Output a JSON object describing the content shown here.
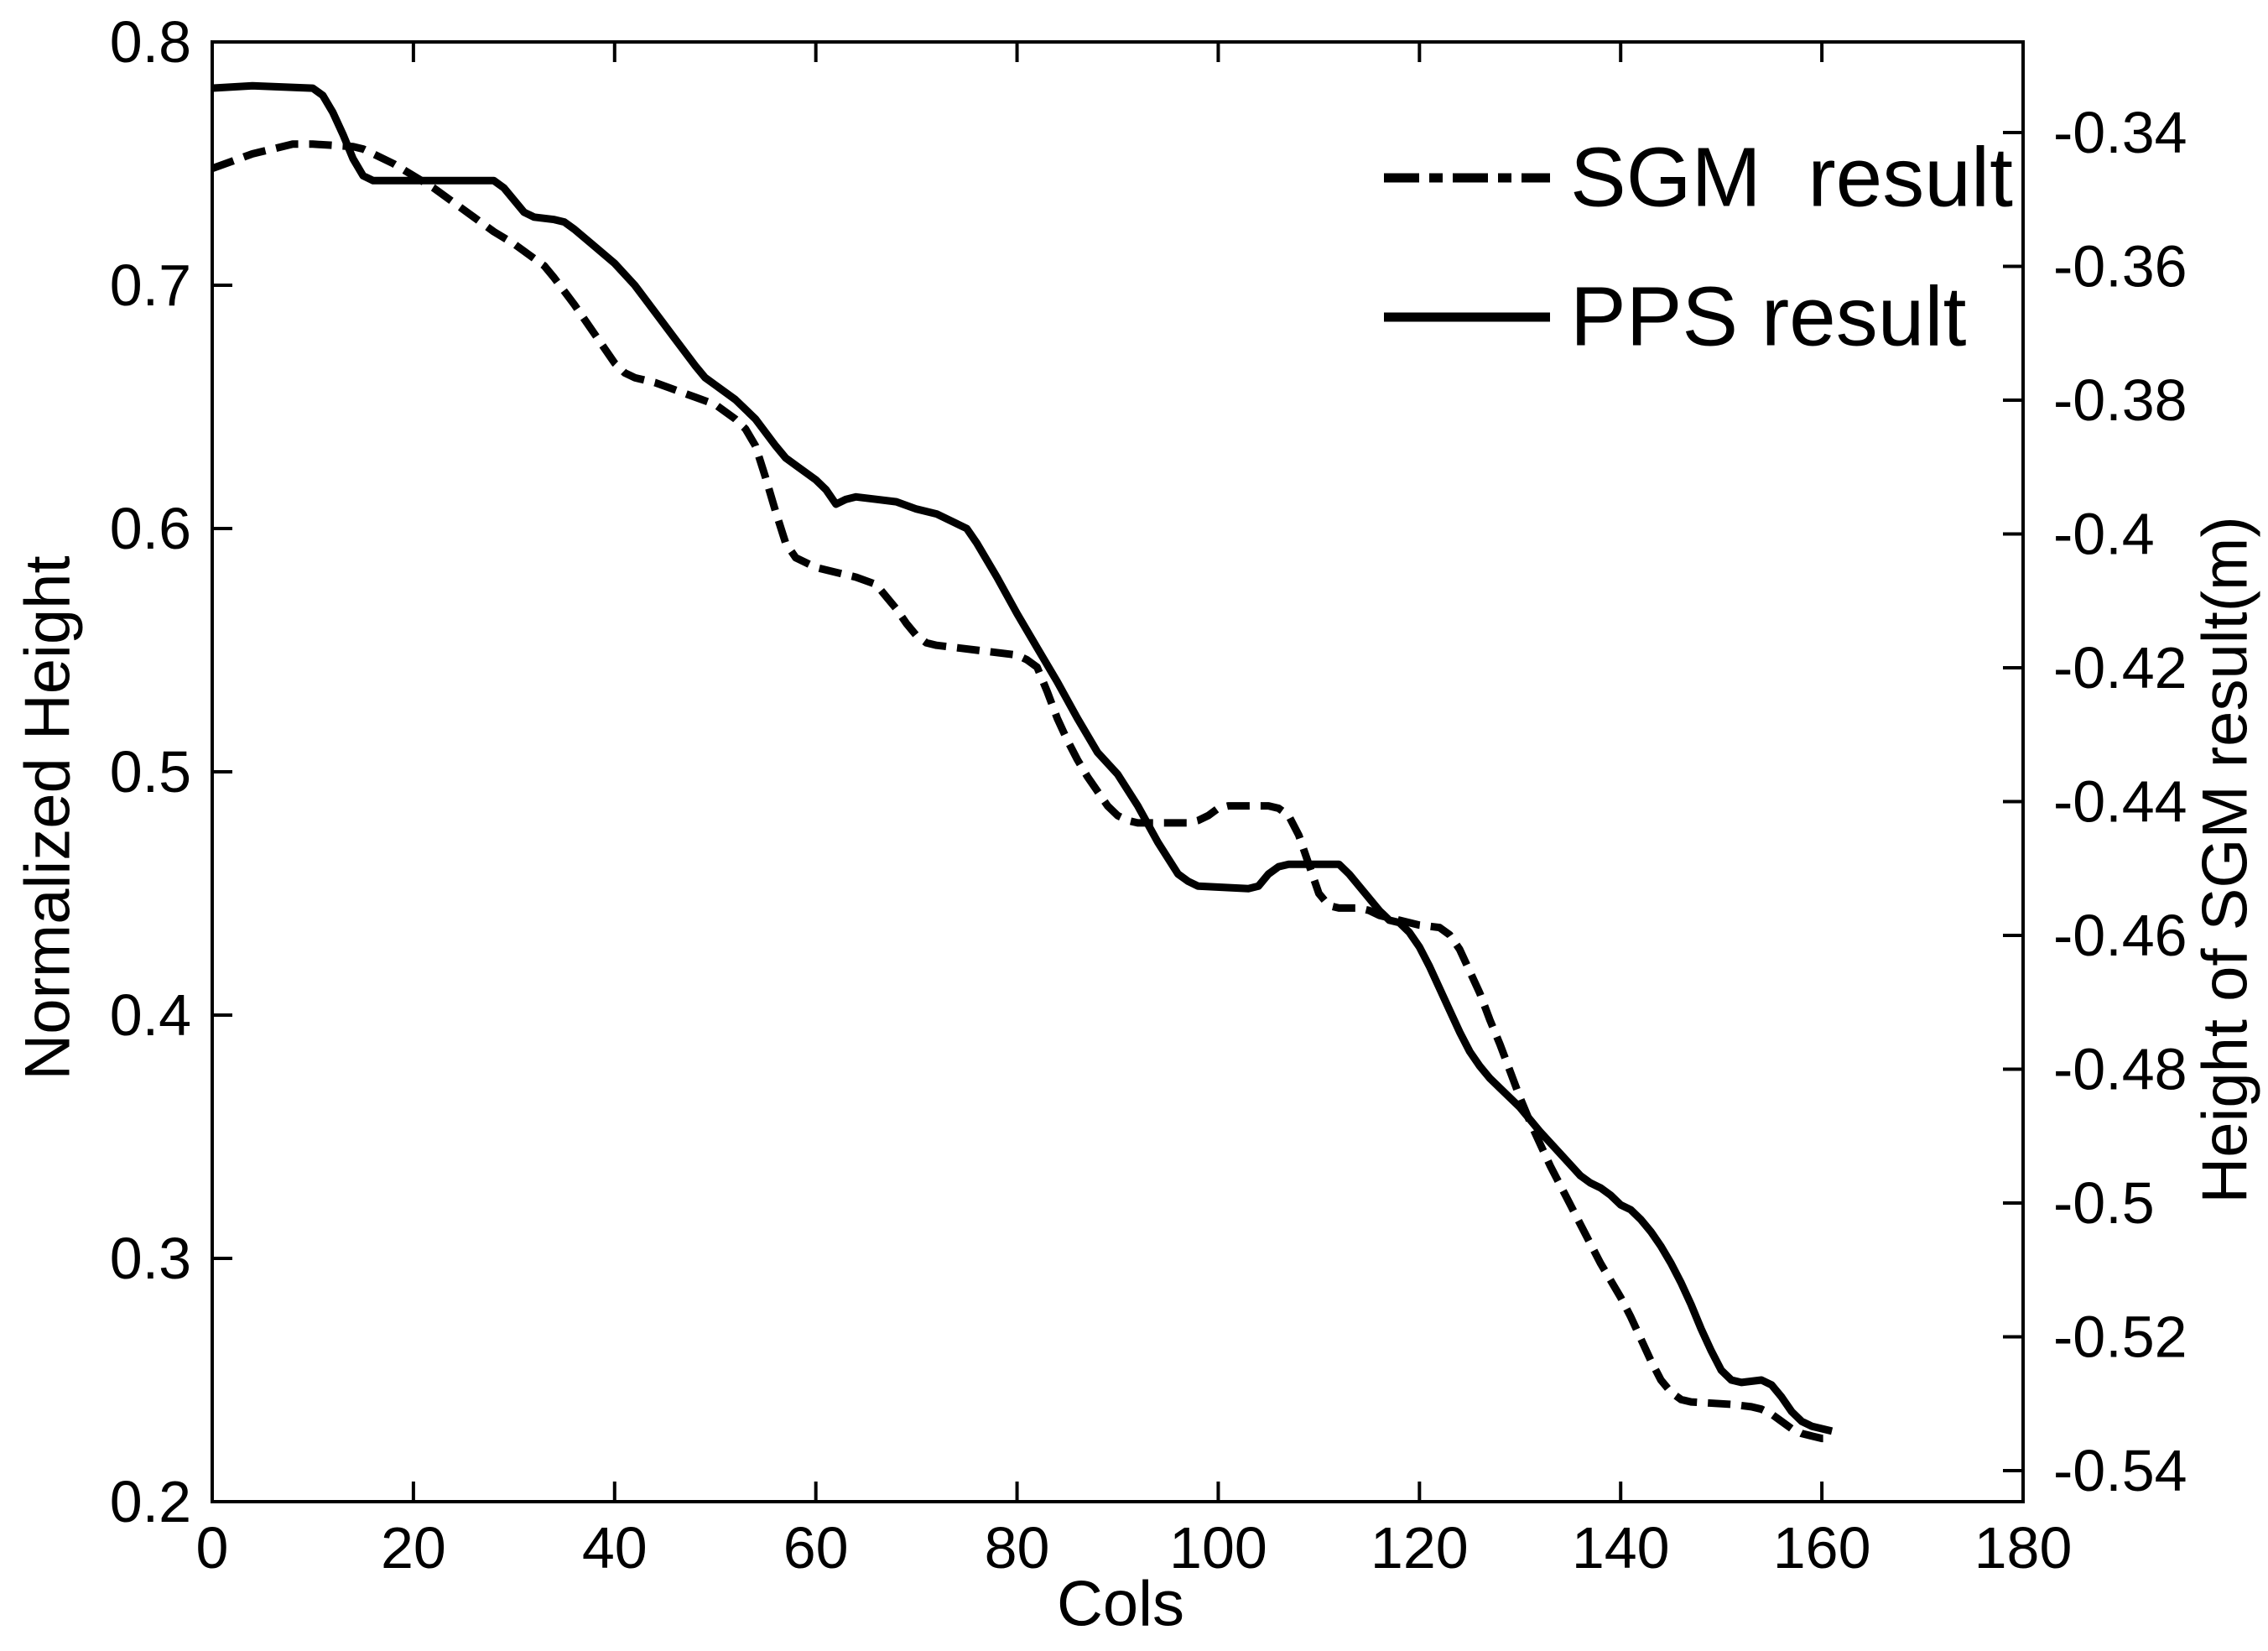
{
  "figure": {
    "background_color": "#ffffff",
    "line_color": "#000000"
  },
  "chart_data": {
    "type": "line",
    "title": "",
    "xlabel": "Cols",
    "ylabel_left": "Normalized Height",
    "ylabel_right": "Height of SGM result(m)",
    "grid": false,
    "x_axis": {
      "min": 0,
      "max": 180,
      "ticks": [
        0,
        20,
        40,
        60,
        80,
        100,
        120,
        140,
        160,
        180
      ],
      "tick_labels": [
        "0",
        "20",
        "40",
        "60",
        "80",
        "100",
        "120",
        "140",
        "160",
        "180"
      ]
    },
    "y_axis_left": {
      "min": 0.2,
      "max": 0.8,
      "ticks": [
        0.8,
        0.7,
        0.6,
        0.5,
        0.4,
        0.3,
        0.2
      ],
      "tick_labels": [
        "0.8",
        "0.7",
        "0.6",
        "0.5",
        "0.4",
        "0.3",
        "0.2"
      ]
    },
    "y_axis_right": {
      "top_value": -0.32646,
      "bottom_value": -0.54464,
      "ticks": [
        -0.34,
        -0.36,
        -0.38,
        -0.4,
        -0.42,
        -0.44,
        -0.46,
        -0.48,
        -0.5,
        -0.52,
        -0.54
      ],
      "tick_labels": [
        "-0.34",
        "-0.36",
        "-0.38",
        "-0.4",
        "-0.42",
        "-0.44",
        "-0.46",
        "-0.48",
        "-0.5",
        "-0.52",
        "-0.54"
      ]
    },
    "legend": {
      "position": "upper-right",
      "entries": [
        {
          "label": "SGM  result",
          "line_style": "dash-dot"
        },
        {
          "label": "PPS result",
          "line_style": "solid"
        }
      ]
    },
    "series": [
      {
        "name": "SGM result",
        "axis": "left",
        "style": "dashed",
        "color": "#000000",
        "points": [
          [
            0,
            0.748
          ],
          [
            2,
            0.751
          ],
          [
            4,
            0.754
          ],
          [
            6,
            0.756
          ],
          [
            8,
            0.758
          ],
          [
            10,
            0.758
          ],
          [
            14,
            0.757
          ],
          [
            15,
            0.756
          ],
          [
            16,
            0.754
          ],
          [
            18,
            0.75
          ],
          [
            20,
            0.745
          ],
          [
            22,
            0.74
          ],
          [
            24,
            0.734
          ],
          [
            26,
            0.728
          ],
          [
            28,
            0.722
          ],
          [
            30,
            0.717
          ],
          [
            32,
            0.711
          ],
          [
            33,
            0.708
          ],
          [
            34,
            0.703
          ],
          [
            36,
            0.692
          ],
          [
            38,
            0.68
          ],
          [
            40,
            0.668
          ],
          [
            41,
            0.664
          ],
          [
            42,
            0.662
          ],
          [
            44,
            0.66
          ],
          [
            46,
            0.657
          ],
          [
            48,
            0.654
          ],
          [
            50,
            0.651
          ],
          [
            51,
            0.648
          ],
          [
            52,
            0.645
          ],
          [
            53,
            0.641
          ],
          [
            54,
            0.634
          ],
          [
            55,
            0.621
          ],
          [
            56,
            0.607
          ],
          [
            57,
            0.594
          ],
          [
            58,
            0.588
          ],
          [
            60,
            0.584
          ],
          [
            62,
            0.582
          ],
          [
            64,
            0.58
          ],
          [
            66,
            0.577
          ],
          [
            67,
            0.572
          ],
          [
            68,
            0.567
          ],
          [
            69,
            0.561
          ],
          [
            70,
            0.556
          ],
          [
            71,
            0.553
          ],
          [
            72,
            0.552
          ],
          [
            76,
            0.55
          ],
          [
            80,
            0.548
          ],
          [
            81,
            0.546
          ],
          [
            82,
            0.543
          ],
          [
            83,
            0.533
          ],
          [
            84,
            0.522
          ],
          [
            85,
            0.513
          ],
          [
            86,
            0.505
          ],
          [
            87,
            0.498
          ],
          [
            88,
            0.492
          ],
          [
            89,
            0.486
          ],
          [
            90,
            0.482
          ],
          [
            91,
            0.48
          ],
          [
            92,
            0.479
          ],
          [
            97,
            0.479
          ],
          [
            98,
            0.48
          ],
          [
            99,
            0.482
          ],
          [
            100,
            0.485
          ],
          [
            101,
            0.486
          ],
          [
            105,
            0.486
          ],
          [
            106,
            0.485
          ],
          [
            107,
            0.482
          ],
          [
            108,
            0.474
          ],
          [
            109,
            0.462
          ],
          [
            110,
            0.45
          ],
          [
            111,
            0.445
          ],
          [
            112,
            0.444
          ],
          [
            114,
            0.444
          ],
          [
            115,
            0.443
          ],
          [
            116,
            0.441
          ],
          [
            118,
            0.439
          ],
          [
            120,
            0.437
          ],
          [
            122,
            0.436
          ],
          [
            123,
            0.433
          ],
          [
            124,
            0.427
          ],
          [
            125,
            0.418
          ],
          [
            126,
            0.409
          ],
          [
            127,
            0.398
          ],
          [
            128,
            0.388
          ],
          [
            129,
            0.377
          ],
          [
            130,
            0.366
          ],
          [
            131,
            0.356
          ],
          [
            132,
            0.347
          ],
          [
            133,
            0.338
          ],
          [
            134,
            0.33
          ],
          [
            135,
            0.322
          ],
          [
            136,
            0.314
          ],
          [
            137,
            0.306
          ],
          [
            138,
            0.298
          ],
          [
            139,
            0.291
          ],
          [
            140,
            0.284
          ],
          [
            141,
            0.276
          ],
          [
            142,
            0.267
          ],
          [
            143,
            0.258
          ],
          [
            144,
            0.25
          ],
          [
            145,
            0.245
          ],
          [
            146,
            0.242
          ],
          [
            147,
            0.241
          ],
          [
            151,
            0.24
          ],
          [
            153,
            0.239
          ],
          [
            154,
            0.238
          ],
          [
            155,
            0.236
          ],
          [
            156,
            0.233
          ],
          [
            157,
            0.23
          ],
          [
            158,
            0.228
          ],
          [
            159,
            0.227
          ],
          [
            160,
            0.226
          ],
          [
            161,
            0.226
          ]
        ]
      },
      {
        "name": "PPS result",
        "axis": "left",
        "style": "solid",
        "color": "#000000",
        "points": [
          [
            0,
            0.781
          ],
          [
            4,
            0.782
          ],
          [
            10,
            0.781
          ],
          [
            11,
            0.778
          ],
          [
            12,
            0.771
          ],
          [
            13,
            0.762
          ],
          [
            14,
            0.752
          ],
          [
            15,
            0.745
          ],
          [
            16,
            0.743
          ],
          [
            28,
            0.743
          ],
          [
            29,
            0.74
          ],
          [
            30,
            0.735
          ],
          [
            31,
            0.73
          ],
          [
            32,
            0.728
          ],
          [
            34,
            0.727
          ],
          [
            35,
            0.726
          ],
          [
            36,
            0.723
          ],
          [
            38,
            0.716
          ],
          [
            40,
            0.709
          ],
          [
            42,
            0.7
          ],
          [
            44,
            0.689
          ],
          [
            46,
            0.678
          ],
          [
            48,
            0.667
          ],
          [
            49,
            0.662
          ],
          [
            50,
            0.659
          ],
          [
            52,
            0.653
          ],
          [
            54,
            0.645
          ],
          [
            56,
            0.634
          ],
          [
            57,
            0.629
          ],
          [
            58,
            0.626
          ],
          [
            60,
            0.62
          ],
          [
            61,
            0.616
          ],
          [
            62,
            0.61
          ],
          [
            63,
            0.612
          ],
          [
            64,
            0.613
          ],
          [
            66,
            0.612
          ],
          [
            68,
            0.611
          ],
          [
            70,
            0.608
          ],
          [
            72,
            0.606
          ],
          [
            74,
            0.602
          ],
          [
            75,
            0.6
          ],
          [
            76,
            0.594
          ],
          [
            78,
            0.58
          ],
          [
            80,
            0.565
          ],
          [
            82,
            0.551
          ],
          [
            84,
            0.537
          ],
          [
            86,
            0.522
          ],
          [
            88,
            0.508
          ],
          [
            90,
            0.499
          ],
          [
            92,
            0.486
          ],
          [
            94,
            0.471
          ],
          [
            96,
            0.458
          ],
          [
            97,
            0.455
          ],
          [
            98,
            0.453
          ],
          [
            103,
            0.452
          ],
          [
            104,
            0.453
          ],
          [
            105,
            0.458
          ],
          [
            106,
            0.461
          ],
          [
            107,
            0.462
          ],
          [
            112,
            0.462
          ],
          [
            113,
            0.458
          ],
          [
            114,
            0.453
          ],
          [
            116,
            0.443
          ],
          [
            117,
            0.439
          ],
          [
            118,
            0.438
          ],
          [
            119,
            0.434
          ],
          [
            120,
            0.428
          ],
          [
            121,
            0.42
          ],
          [
            122,
            0.411
          ],
          [
            123,
            0.402
          ],
          [
            124,
            0.393
          ],
          [
            125,
            0.385
          ],
          [
            126,
            0.379
          ],
          [
            127,
            0.374
          ],
          [
            128,
            0.37
          ],
          [
            130,
            0.362
          ],
          [
            132,
            0.352
          ],
          [
            134,
            0.343
          ],
          [
            136,
            0.334
          ],
          [
            137,
            0.331
          ],
          [
            138,
            0.329
          ],
          [
            139,
            0.326
          ],
          [
            140,
            0.322
          ],
          [
            141,
            0.32
          ],
          [
            142,
            0.316
          ],
          [
            143,
            0.311
          ],
          [
            144,
            0.305
          ],
          [
            145,
            0.298
          ],
          [
            146,
            0.29
          ],
          [
            147,
            0.281
          ],
          [
            148,
            0.271
          ],
          [
            149,
            0.262
          ],
          [
            150,
            0.254
          ],
          [
            151,
            0.25
          ],
          [
            152,
            0.249
          ],
          [
            154,
            0.25
          ],
          [
            155,
            0.248
          ],
          [
            156,
            0.243
          ],
          [
            157,
            0.237
          ],
          [
            158,
            0.233
          ],
          [
            159,
            0.231
          ],
          [
            160,
            0.23
          ],
          [
            161,
            0.229
          ]
        ]
      }
    ]
  }
}
